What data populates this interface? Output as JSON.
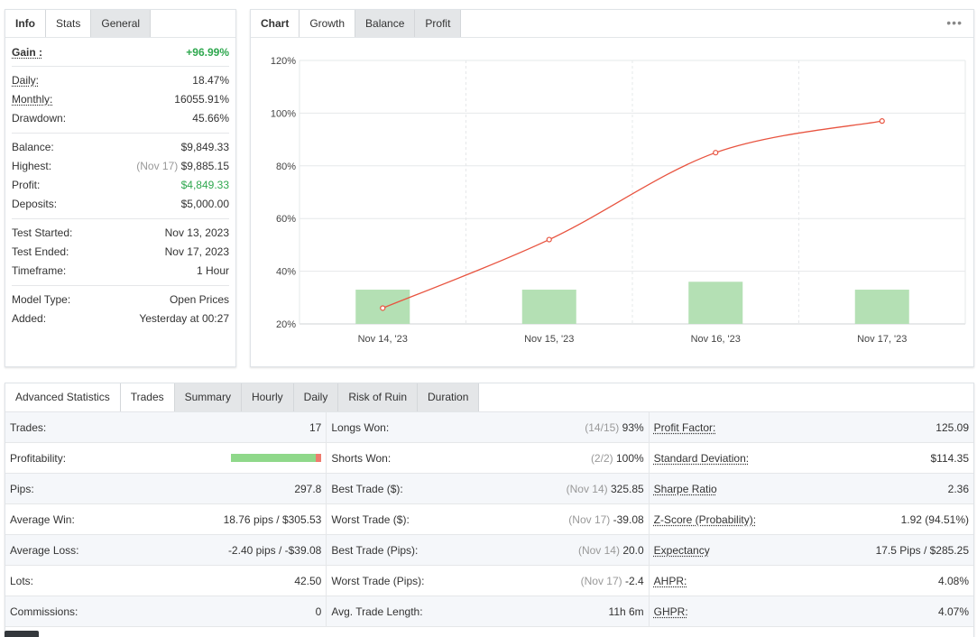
{
  "stats_panel": {
    "tabs": [
      "Info",
      "Stats",
      "General"
    ],
    "active_tab": "Info",
    "gain": {
      "label": "Gain :",
      "value": "+96.99%"
    },
    "group1": [
      {
        "label": "Daily:",
        "value": "18.47%",
        "underline": true
      },
      {
        "label": "Monthly:",
        "value": "16055.91%",
        "underline": true
      },
      {
        "label": "Drawdown:",
        "value": "45.66%",
        "underline": false
      }
    ],
    "group2": [
      {
        "label": "Balance:",
        "value": "$9,849.33"
      },
      {
        "label": "Highest:",
        "note": "(Nov 17)",
        "value": "$9,885.15"
      },
      {
        "label": "Profit:",
        "value": "$4,849.33",
        "green": true
      },
      {
        "label": "Deposits:",
        "value": "$5,000.00"
      }
    ],
    "group3": [
      {
        "label": "Test Started:",
        "value": "Nov 13, 2023"
      },
      {
        "label": "Test Ended:",
        "value": "Nov 17, 2023"
      },
      {
        "label": "Timeframe:",
        "value": "1 Hour"
      }
    ],
    "group4": [
      {
        "label": "Model Type:",
        "value": "Open Prices"
      },
      {
        "label": "Added:",
        "value": "Yesterday at 00:27"
      }
    ]
  },
  "chart_panel": {
    "tabs": [
      "Chart",
      "Growth",
      "Balance",
      "Profit"
    ],
    "active_tab": "Growth",
    "menu_icon": "more-dots-icon"
  },
  "chart_data": {
    "type": "line",
    "categories": [
      "Nov 14, '23",
      "Nov 15, '23",
      "Nov 16, '23",
      "Nov 17, '23"
    ],
    "y_ticks": [
      "120%",
      "100%",
      "80%",
      "60%",
      "40%",
      "20%"
    ],
    "ylim": [
      20,
      120
    ],
    "series": [
      {
        "kind": "line",
        "color": "#e8533f",
        "values": [
          26,
          52,
          85,
          97
        ]
      },
      {
        "kind": "bar",
        "color": "#b4e0b4",
        "values": [
          33,
          33,
          36,
          33
        ]
      }
    ],
    "grid": true
  },
  "advanced": {
    "tabs": [
      "Advanced Statistics",
      "Trades",
      "Summary",
      "Hourly",
      "Daily",
      "Risk of Ruin",
      "Duration"
    ],
    "active_tab": "Trades",
    "col1": [
      {
        "label": "Trades:",
        "value": "17"
      },
      {
        "label": "Profitability:",
        "bar_win_fraction": 0.94
      },
      {
        "label": "Pips:",
        "value": "297.8"
      },
      {
        "label": "Average Win:",
        "value": "18.76 pips / $305.53"
      },
      {
        "label": "Average Loss:",
        "value": "-2.40 pips / -$39.08"
      },
      {
        "label": "Lots:",
        "value": "42.50"
      },
      {
        "label": "Commissions:",
        "value": "0"
      }
    ],
    "col2": [
      {
        "label": "Longs Won:",
        "note": "(14/15)",
        "value": "93%"
      },
      {
        "label": "Shorts Won:",
        "note": "(2/2)",
        "value": "100%"
      },
      {
        "label": "Best Trade ($):",
        "note": "(Nov 14)",
        "value": "325.85"
      },
      {
        "label": "Worst Trade ($):",
        "note": "(Nov 17)",
        "value": "-39.08"
      },
      {
        "label": "Best Trade (Pips):",
        "note": "(Nov 14)",
        "value": "20.0"
      },
      {
        "label": "Worst Trade (Pips):",
        "note": "(Nov 17)",
        "value": "-2.4"
      },
      {
        "label": "Avg. Trade Length:",
        "value": "11h 6m"
      }
    ],
    "col3": [
      {
        "label": "Profit Factor:",
        "value": "125.09"
      },
      {
        "label": "Standard Deviation:",
        "value": "$114.35"
      },
      {
        "label": "Sharpe Ratio",
        "value": "2.36"
      },
      {
        "label": "Z-Score (Probability):",
        "value": "1.92 (94.51%)"
      },
      {
        "label": "Expectancy",
        "value": "17.5 Pips / $285.25"
      },
      {
        "label": "AHPR:",
        "value": "4.08%"
      },
      {
        "label": "GHPR:",
        "value": "4.07%"
      }
    ]
  }
}
